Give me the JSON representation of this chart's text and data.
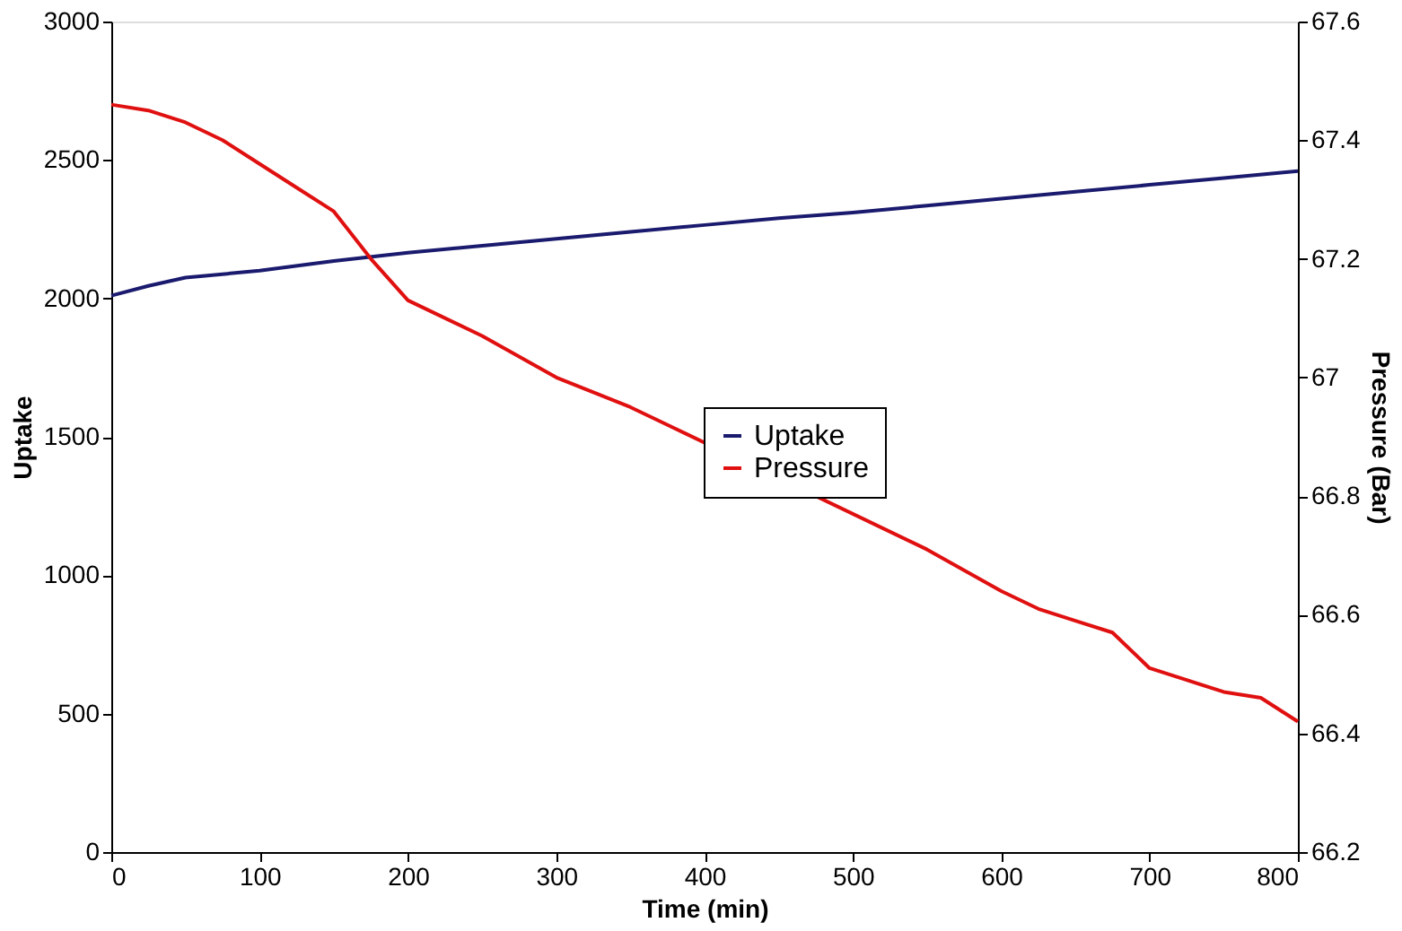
{
  "chart_data": {
    "type": "line",
    "xlabel": "Time (min)",
    "ylabel": "Uptake",
    "y2label": "Pressure (Bar)",
    "series": [
      {
        "name": "Uptake",
        "color": "#1a1a6e",
        "x": [
          0,
          25,
          50,
          100,
          150,
          200,
          250,
          300,
          350,
          400,
          450,
          500,
          550,
          600,
          650,
          700,
          750,
          800
        ],
        "values": [
          2010,
          2045,
          2075,
          2100,
          2135,
          2165,
          2190,
          2215,
          2240,
          2265,
          2290,
          2310,
          2335,
          2360,
          2385,
          2410,
          2435,
          2460
        ]
      },
      {
        "name": "Pressure",
        "color": "#e01010",
        "axis": "y2",
        "x": [
          0,
          25,
          50,
          75,
          100,
          125,
          150,
          175,
          200,
          250,
          300,
          350,
          375,
          550,
          600,
          625,
          650,
          675,
          700,
          725,
          750,
          775,
          800
        ],
        "values": [
          67.46,
          67.45,
          67.43,
          67.4,
          67.36,
          67.32,
          67.28,
          67.2,
          67.13,
          67.07,
          67.0,
          66.95,
          66.92,
          66.71,
          66.64,
          66.61,
          66.59,
          66.57,
          66.51,
          66.49,
          66.47,
          66.46,
          66.42
        ]
      }
    ],
    "xlim": [
      0,
      800
    ],
    "xticks": [
      0,
      100,
      200,
      300,
      400,
      500,
      600,
      700,
      800
    ],
    "ylim": [
      0,
      3000
    ],
    "yticks": [
      0,
      500,
      1000,
      1500,
      2000,
      2500,
      3000
    ],
    "y2lim": [
      66.2,
      67.6
    ],
    "y2ticks": [
      66.2,
      66.4,
      66.6,
      66.8,
      67,
      67.2,
      67.4,
      67.6
    ],
    "grid": false,
    "legend": "right",
    "marker": "none",
    "line_style": "solid"
  }
}
